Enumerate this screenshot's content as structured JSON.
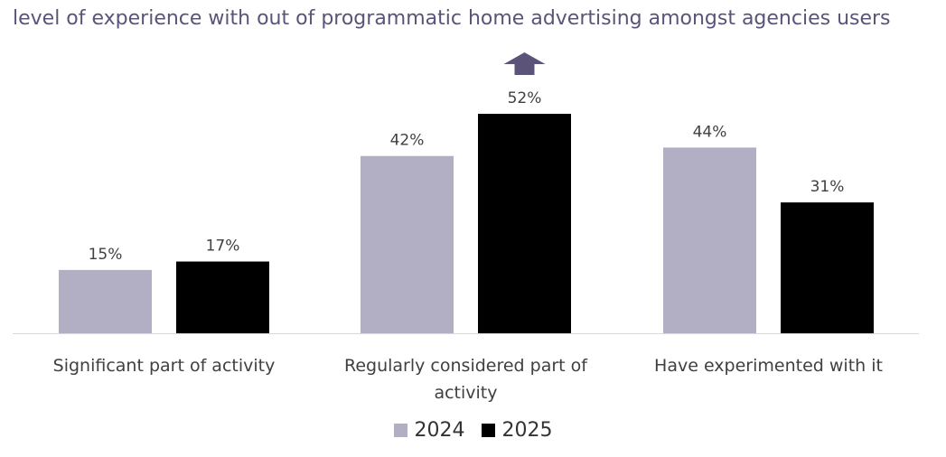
{
  "chart_data": {
    "type": "bar",
    "title": "level of experience with out of programmatic home advertising amongst agencies users",
    "categories": [
      "Significant part of activity",
      "Regularly considered part of activity",
      "Have experimented with it"
    ],
    "series": [
      {
        "name": "2024",
        "values": [
          15,
          42,
          44
        ],
        "labels": [
          "15%",
          "42%",
          "44%"
        ],
        "color": "#b2aec4"
      },
      {
        "name": "2025",
        "values": [
          17,
          52,
          31
        ],
        "labels": [
          "17%",
          "52%",
          "31%"
        ],
        "color": "#000000"
      }
    ],
    "unit": "%",
    "ylim": [
      0,
      52
    ],
    "grid": false,
    "legend_position": "bottom",
    "highlight": {
      "category": "Regularly considered part of activity",
      "series": "2025",
      "icon": "arrow-up-icon",
      "color": "#5b5478"
    }
  }
}
